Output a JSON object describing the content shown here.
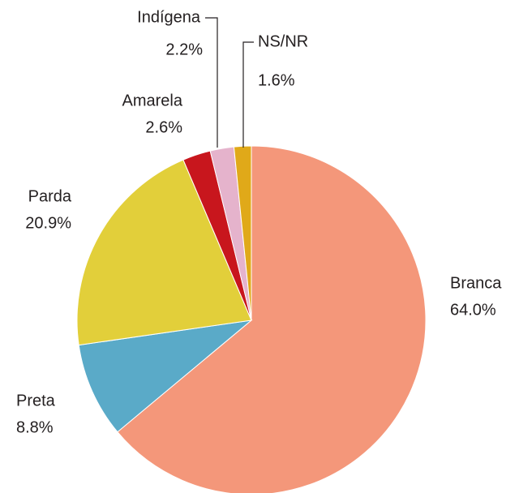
{
  "chart_data": {
    "type": "pie",
    "categories": [
      "Branca",
      "Preta",
      "Parda",
      "Amarela",
      "Indígena",
      "NS/NR"
    ],
    "values": [
      64.0,
      8.8,
      20.9,
      2.6,
      2.2,
      1.6
    ],
    "value_labels": [
      "64.0%",
      "8.8%",
      "20.9%",
      "2.6%",
      "2.2%",
      "1.6%"
    ],
    "colors": [
      "#f4977a",
      "#5aaac8",
      "#e2cf3a",
      "#c8161d",
      "#e5b3cc",
      "#e0a919"
    ]
  }
}
